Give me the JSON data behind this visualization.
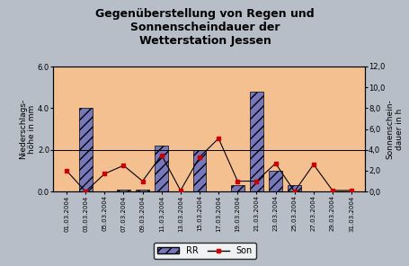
{
  "title": "Gegenüberstellung von Regen und\nSonnenscheindauer der\nWetterstation Jessen",
  "ylabel_left": "Niederschlags-\nhöhe in mm",
  "ylabel_right": "Sonnenschein-\ndauer in h",
  "dates": [
    "01.03.2004",
    "03.03.2004",
    "05.03.2004",
    "07.03.2004",
    "09.03.2004",
    "11.03.2004",
    "13.03.2004",
    "15.03.2004",
    "17.03.2004",
    "19.03.2004",
    "21.03.2004",
    "23.03.2004",
    "25.03.2004",
    "27.03.2004",
    "29.03.2004",
    "31.03.2004"
  ],
  "RR": [
    0.0,
    4.0,
    0.0,
    0.1,
    0.1,
    2.2,
    0.0,
    2.0,
    0.0,
    0.3,
    4.8,
    1.0,
    0.3,
    0.0,
    0.0,
    0.0
  ],
  "son_x": [
    0,
    1,
    2,
    3,
    4,
    5,
    6,
    7,
    8,
    9,
    10,
    11,
    12,
    13,
    14,
    15
  ],
  "son_y": [
    2.0,
    0.0,
    1.7,
    2.5,
    1.0,
    3.5,
    0.1,
    3.3,
    5.1,
    1.0,
    1.0,
    2.7,
    0.0,
    2.6,
    0.1,
    0.1
  ],
  "ylim_left": [
    0.0,
    6.0
  ],
  "ylim_right": [
    0.0,
    12.0
  ],
  "yticks_left": [
    0.0,
    2.0,
    4.0,
    6.0
  ],
  "yticks_right_vals": [
    0.0,
    2.0,
    4.0,
    6.0,
    8.0,
    10.0,
    12.0
  ],
  "yticks_right_labels": [
    "0,0",
    "2,0",
    "4,0",
    "6,0",
    "8,0",
    "10,0",
    "12,0"
  ],
  "bar_color": "#7777bb",
  "bar_hatch": "///",
  "line_color": "#000000",
  "marker_color": "#cc0000",
  "plot_bg": "#f5c090",
  "fig_bg": "#b8bec8",
  "title_fontsize": 9,
  "axis_fontsize": 6.5,
  "tick_fontsize": 6.0
}
